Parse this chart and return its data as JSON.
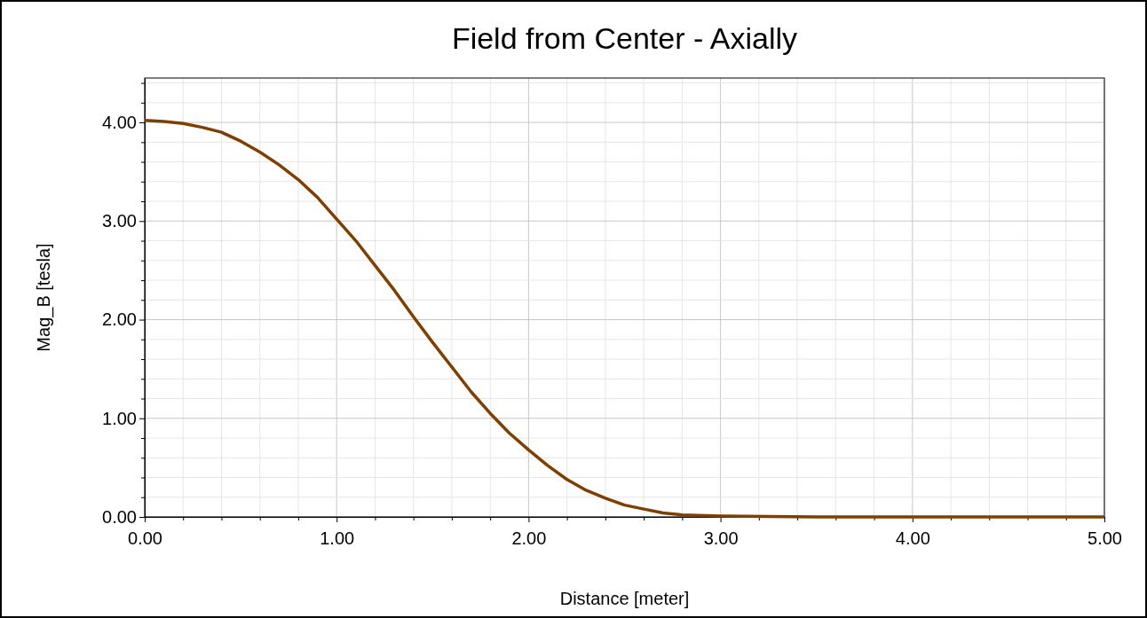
{
  "chart_data": {
    "type": "line",
    "title": "Field from Center - Axially",
    "xlabel": "Distance [meter]",
    "ylabel": "Mag_B [tesla]",
    "x": [
      0,
      0.1,
      0.2,
      0.3,
      0.4,
      0.5,
      0.6,
      0.7,
      0.8,
      0.9,
      1.0,
      1.1,
      1.2,
      1.3,
      1.4,
      1.5,
      1.6,
      1.7,
      1.8,
      1.9,
      2.0,
      2.1,
      2.2,
      2.3,
      2.4,
      2.5,
      2.6,
      2.7,
      2.8,
      3.0,
      3.5,
      4.0,
      4.5,
      5.0
    ],
    "series": [
      {
        "color": "#7f3f00",
        "values": [
          4.02,
          4.01,
          3.99,
          3.95,
          3.9,
          3.81,
          3.7,
          3.57,
          3.42,
          3.24,
          3.02,
          2.8,
          2.55,
          2.3,
          2.03,
          1.77,
          1.52,
          1.27,
          1.05,
          0.85,
          0.68,
          0.52,
          0.38,
          0.27,
          0.19,
          0.12,
          0.08,
          0.04,
          0.02,
          0.01,
          0,
          0,
          0,
          0
        ]
      }
    ],
    "xlim": [
      0,
      5
    ],
    "ylim": [
      0,
      4.45
    ],
    "xticks": [
      {
        "value": 0,
        "label": "0.00"
      },
      {
        "value": 0.2,
        "label": null
      },
      {
        "value": 0.4,
        "label": null
      },
      {
        "value": 0.6,
        "label": null
      },
      {
        "value": 0.8,
        "label": null
      },
      {
        "value": 1,
        "label": "1.00"
      },
      {
        "value": 1.2,
        "label": null
      },
      {
        "value": 1.4,
        "label": null
      },
      {
        "value": 1.6,
        "label": null
      },
      {
        "value": 1.8,
        "label": null
      },
      {
        "value": 2,
        "label": "2.00"
      },
      {
        "value": 2.2,
        "label": null
      },
      {
        "value": 2.4,
        "label": null
      },
      {
        "value": 2.6,
        "label": null
      },
      {
        "value": 2.8,
        "label": null
      },
      {
        "value": 3,
        "label": "3.00"
      },
      {
        "value": 3.2,
        "label": null
      },
      {
        "value": 3.4,
        "label": null
      },
      {
        "value": 3.6,
        "label": null
      },
      {
        "value": 3.8,
        "label": null
      },
      {
        "value": 4,
        "label": "4.00"
      },
      {
        "value": 4.2,
        "label": null
      },
      {
        "value": 4.4,
        "label": null
      },
      {
        "value": 4.6,
        "label": null
      },
      {
        "value": 4.8,
        "label": null
      },
      {
        "value": 5,
        "label": "5.00"
      }
    ],
    "yticks": [
      {
        "value": 0,
        "label": "0.00"
      },
      {
        "value": 0.2,
        "label": null
      },
      {
        "value": 0.4,
        "label": null
      },
      {
        "value": 0.6,
        "label": null
      },
      {
        "value": 0.8,
        "label": null
      },
      {
        "value": 1,
        "label": "1.00"
      },
      {
        "value": 1.2,
        "label": null
      },
      {
        "value": 1.4,
        "label": null
      },
      {
        "value": 1.6,
        "label": null
      },
      {
        "value": 1.8,
        "label": null
      },
      {
        "value": 2,
        "label": "2.00"
      },
      {
        "value": 2.2,
        "label": null
      },
      {
        "value": 2.4,
        "label": null
      },
      {
        "value": 2.6,
        "label": null
      },
      {
        "value": 2.8,
        "label": null
      },
      {
        "value": 3,
        "label": "3.00"
      },
      {
        "value": 3.2,
        "label": null
      },
      {
        "value": 3.4,
        "label": null
      },
      {
        "value": 3.6,
        "label": null
      },
      {
        "value": 3.8,
        "label": null
      },
      {
        "value": 4,
        "label": "4.00"
      },
      {
        "value": 4.2,
        "label": null
      },
      {
        "value": 4.4,
        "label": null
      }
    ],
    "grid": true,
    "marker": "none",
    "line_style": "solid"
  }
}
